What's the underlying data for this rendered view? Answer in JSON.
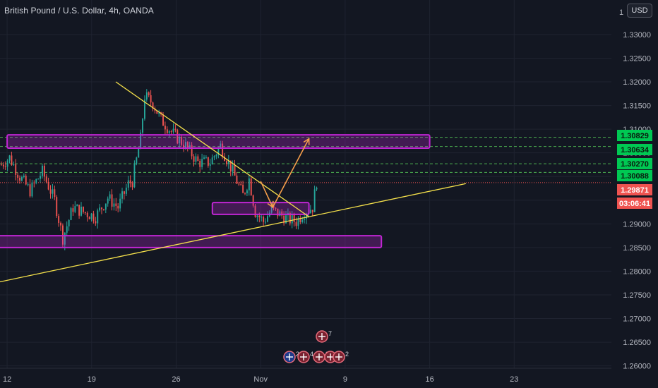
{
  "header": {
    "title": "British Pound / U.S. Dollar, 4h, OANDA",
    "currency_button": "USD",
    "top_tick_partial": "1"
  },
  "colors": {
    "background": "#131722",
    "grid": "#1f2330",
    "up_candle": "#26a69a",
    "down_candle": "#ef5350",
    "zone": "#c026d3",
    "trendline": "#f5e14b",
    "arrow": "#f59e4b",
    "level_line": "#4caf50",
    "current_price_badge": "#ef5350",
    "level_badge": "#00c853"
  },
  "chart_data": {
    "type": "candlestick",
    "symbol": "British Pound / U.S. Dollar",
    "interval": "4h",
    "exchange": "OANDA",
    "y_axis": {
      "ticks": [
        "1.33000",
        "1.32500",
        "1.32000",
        "1.31500",
        "1.31000",
        "1.30500",
        "1.30000",
        "1.29500",
        "1.29000",
        "1.28500",
        "1.28000",
        "1.27500",
        "1.27000",
        "1.26500",
        "1.26000"
      ],
      "ylim": [
        1.2595,
        1.3355
      ]
    },
    "x_axis": {
      "ticks": [
        "12",
        "19",
        "26",
        "Nov",
        "9",
        "16",
        "23"
      ]
    },
    "price_labels": [
      {
        "value": "1.30829",
        "kind": "level"
      },
      {
        "value": "1.30634",
        "kind": "level"
      },
      {
        "value": "1.30270",
        "kind": "level"
      },
      {
        "value": "1.30088",
        "kind": "level"
      },
      {
        "value": "1.29871",
        "kind": "current"
      },
      {
        "value": "03:06:41",
        "kind": "countdown"
      }
    ],
    "horizontal_levels": [
      1.30829,
      1.30634,
      1.3027,
      1.30088
    ],
    "current_price": 1.29871,
    "zones": [
      {
        "from": 1.306,
        "to": 1.3088,
        "start": "Oct 12",
        "end": "Nov 16"
      },
      {
        "from": 1.292,
        "to": 1.2945,
        "start": "Oct 29",
        "end": "Nov 6"
      },
      {
        "from": 1.285,
        "to": 1.2875,
        "start": "Oct 11",
        "end": "Nov 12"
      }
    ],
    "trendlines": [
      {
        "name": "descending",
        "points": [
          [
            "Oct 21",
            1.32
          ],
          [
            "Nov 6",
            1.2915
          ]
        ]
      },
      {
        "name": "ascending",
        "points": [
          [
            "Oct 10",
            1.277
          ],
          [
            "Nov 19",
            1.2985
          ]
        ]
      }
    ],
    "projection_path": [
      [
        "Nov 2",
        1.299
      ],
      [
        "Nov 3",
        1.2935
      ],
      [
        "Nov 6",
        1.308
      ]
    ],
    "event_badges": [
      {
        "icon": "uk-flag-icon",
        "count": "7"
      },
      {
        "icon": "us-flag-icon",
        "count": "2"
      },
      {
        "icon": "uk-flag-icon",
        "count": "4"
      },
      {
        "icon": "uk-flag-icon",
        "count": "3"
      },
      {
        "icon": "uk-flag-icon",
        "count": "2"
      },
      {
        "icon": "uk-flag-icon",
        "count": "2"
      }
    ]
  }
}
